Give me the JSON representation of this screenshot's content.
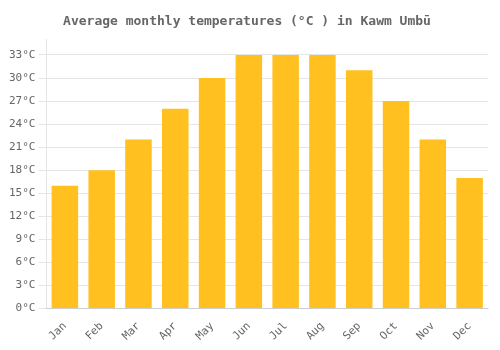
{
  "chart_data": {
    "type": "bar",
    "title": "Average monthly temperatures (°C ) in Kawm Umbū",
    "categories": [
      "Jan",
      "Feb",
      "Mar",
      "Apr",
      "May",
      "Jun",
      "Jul",
      "Aug",
      "Sep",
      "Oct",
      "Nov",
      "Dec"
    ],
    "values": [
      16,
      18,
      22,
      26,
      30,
      33,
      33,
      33,
      31,
      27,
      22,
      17
    ],
    "color": "#FFC020",
    "ylim": [
      0,
      35
    ],
    "yticks": [
      {
        "value": 0,
        "label": "0°C"
      },
      {
        "value": 3,
        "label": "3°C"
      },
      {
        "value": 6,
        "label": "6°C"
      },
      {
        "value": 9,
        "label": "9°C"
      },
      {
        "value": 12,
        "label": "12°C"
      },
      {
        "value": 15,
        "label": "15°C"
      },
      {
        "value": 18,
        "label": "18°C"
      },
      {
        "value": 21,
        "label": "21°C"
      },
      {
        "value": 24,
        "label": "24°C"
      },
      {
        "value": 27,
        "label": "27°C"
      },
      {
        "value": 30,
        "label": "30°C"
      },
      {
        "value": 33,
        "label": "33°C"
      }
    ],
    "grid": true
  }
}
